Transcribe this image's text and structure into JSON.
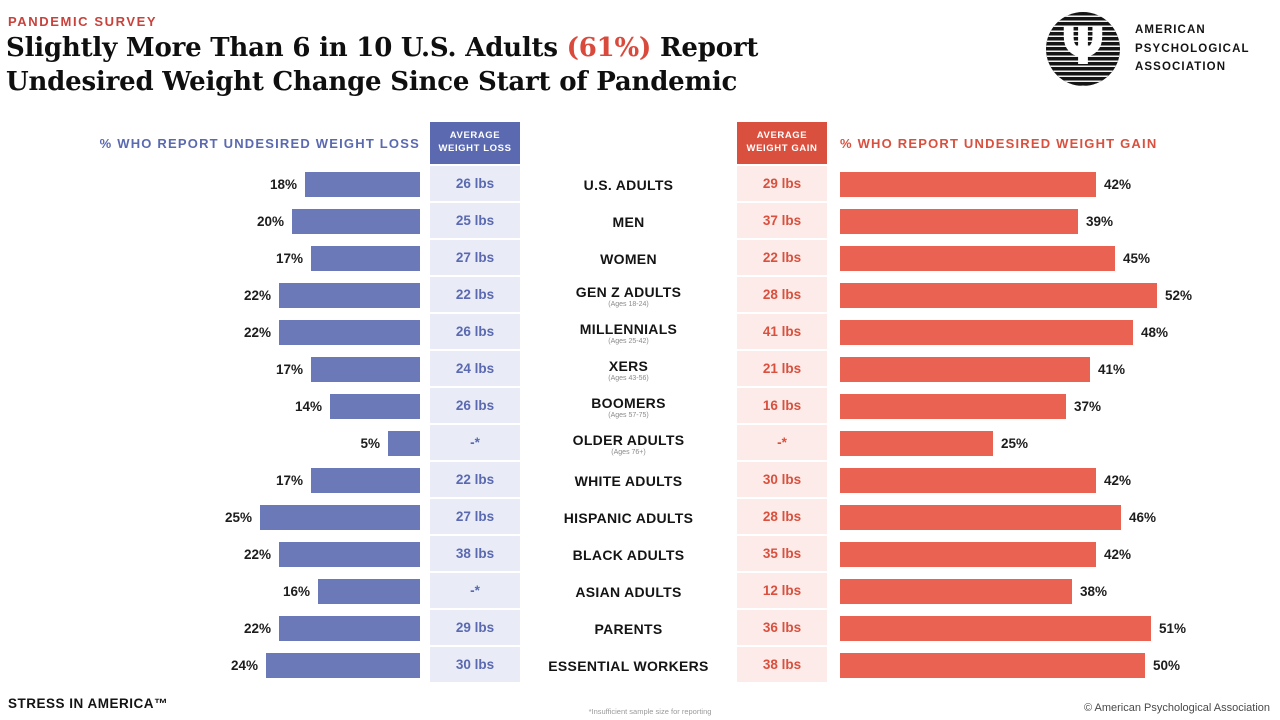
{
  "page": {
    "kicker": "PANDEMIC SURVEY",
    "title": {
      "pre": "Slightly More Than 6 in 10 U.S. Adults ",
      "highlight": "(61%)",
      "post": " Report",
      "line2": "Undesired Weight Change Since Start of Pandemic"
    },
    "logo": {
      "psi": "Ψ",
      "org_line1": "AMERICAN",
      "org_line2": "PSYCHOLOGICAL",
      "org_line3": "ASSOCIATION"
    },
    "footer": {
      "brand": "STRESS IN AMERICA™",
      "footnote": "*Insufficient sample size for reporting",
      "copyright": "© American Psychological Association"
    }
  },
  "chart_data": {
    "type": "bar",
    "orientation": "horizontal-diverging",
    "headers": {
      "loss_axis": "% WHO REPORT UNDESIRED WEIGHT LOSS",
      "loss_avg": "AVERAGE WEIGHT LOSS",
      "gain_avg": "AVERAGE WEIGHT GAIN",
      "gain_axis": "% WHO REPORT UNDESIRED WEIGHT GAIN"
    },
    "xlim_loss_pct": [
      0,
      25
    ],
    "xlim_gain_pct": [
      0,
      52
    ],
    "colors": {
      "loss_bar": "#6b79b8",
      "loss_header_box": "#5a69b0",
      "loss_cell_bg": "#e9ecf6",
      "gain_bar": "#ea6352",
      "gain_header_box": "#d9503e",
      "gain_cell_bg": "#fcebe8",
      "kicker_red": "#c8423b",
      "highlight_red": "#d9493c"
    },
    "rows": [
      {
        "label": "U.S. ADULTS",
        "sub": "",
        "loss_pct": 18,
        "avg_loss": "26 lbs",
        "avg_gain": "29 lbs",
        "gain_pct": 42
      },
      {
        "label": "MEN",
        "sub": "",
        "loss_pct": 20,
        "avg_loss": "25 lbs",
        "avg_gain": "37 lbs",
        "gain_pct": 39
      },
      {
        "label": "WOMEN",
        "sub": "",
        "loss_pct": 17,
        "avg_loss": "27 lbs",
        "avg_gain": "22 lbs",
        "gain_pct": 45
      },
      {
        "label": "GEN Z ADULTS",
        "sub": "(Ages 18-24)",
        "loss_pct": 22,
        "avg_loss": "22 lbs",
        "avg_gain": "28 lbs",
        "gain_pct": 52
      },
      {
        "label": "MILLENNIALS",
        "sub": "(Ages 25-42)",
        "loss_pct": 22,
        "avg_loss": "26 lbs",
        "avg_gain": "41 lbs",
        "gain_pct": 48
      },
      {
        "label": "XERS",
        "sub": "(Ages 43-56)",
        "loss_pct": 17,
        "avg_loss": "24 lbs",
        "avg_gain": "21 lbs",
        "gain_pct": 41
      },
      {
        "label": "BOOMERS",
        "sub": "(Ages 57-75)",
        "loss_pct": 14,
        "avg_loss": "26 lbs",
        "avg_gain": "16 lbs",
        "gain_pct": 37
      },
      {
        "label": "OLDER ADULTS",
        "sub": "(Ages 76+)",
        "loss_pct": 5,
        "avg_loss": "-*",
        "avg_gain": "-*",
        "gain_pct": 25
      },
      {
        "label": "WHITE ADULTS",
        "sub": "",
        "loss_pct": 17,
        "avg_loss": "22 lbs",
        "avg_gain": "30 lbs",
        "gain_pct": 42
      },
      {
        "label": "HISPANIC ADULTS",
        "sub": "",
        "loss_pct": 25,
        "avg_loss": "27 lbs",
        "avg_gain": "28 lbs",
        "gain_pct": 46
      },
      {
        "label": "BLACK ADULTS",
        "sub": "",
        "loss_pct": 22,
        "avg_loss": "38 lbs",
        "avg_gain": "35 lbs",
        "gain_pct": 42
      },
      {
        "label": "ASIAN ADULTS",
        "sub": "",
        "loss_pct": 16,
        "avg_loss": "-*",
        "avg_gain": "12 lbs",
        "gain_pct": 38
      },
      {
        "label": "PARENTS",
        "sub": "",
        "loss_pct": 22,
        "avg_loss": "29 lbs",
        "avg_gain": "36 lbs",
        "gain_pct": 51
      },
      {
        "label": "ESSENTIAL WORKERS",
        "sub": "",
        "loss_pct": 24,
        "avg_loss": "30 lbs",
        "avg_gain": "38 lbs",
        "gain_pct": 50
      }
    ]
  }
}
